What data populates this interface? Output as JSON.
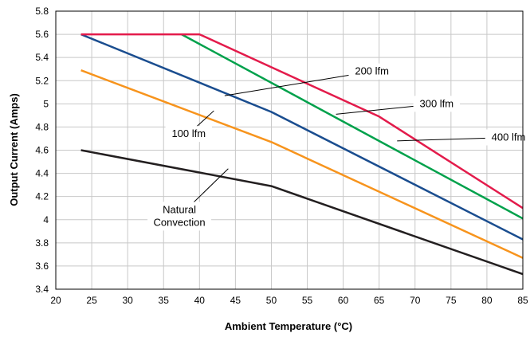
{
  "chart_data": {
    "type": "line",
    "title": "",
    "xlabel": "Ambient Temperature (°C)",
    "ylabel": "Output Current (Amps)",
    "xlim": [
      20,
      85
    ],
    "ylim": [
      3.4,
      5.8
    ],
    "xticks": [
      20,
      25,
      30,
      35,
      40,
      45,
      50,
      55,
      60,
      65,
      70,
      75,
      80,
      85
    ],
    "yticks": [
      3.4,
      3.6,
      3.8,
      4.0,
      4.2,
      4.4,
      4.6,
      4.8,
      5.0,
      5.2,
      5.4,
      5.6,
      5.8
    ],
    "xtick_labels": [
      "20",
      "25",
      "30",
      "35",
      "40",
      "45",
      "50",
      "55",
      "60",
      "65",
      "70",
      "75",
      "80",
      "85"
    ],
    "ytick_labels": [
      "3.4",
      "3.6",
      "3.8",
      "4",
      "4.2",
      "4.4",
      "4.6",
      "4.8",
      "5",
      "5.2",
      "5.4",
      "5.6",
      "5.8"
    ],
    "grid": true,
    "legend": "none",
    "series": [
      {
        "color": "#231f20",
        "points": [
          [
            23.5,
            4.6
          ],
          [
            50,
            4.29
          ],
          [
            85,
            3.53
          ]
        ]
      },
      {
        "color": "#f7941d",
        "points": [
          [
            23.5,
            5.29
          ],
          [
            50,
            4.67
          ],
          [
            85,
            3.67
          ]
        ]
      },
      {
        "color": "#1a4d8f",
        "points": [
          [
            23.5,
            5.6
          ],
          [
            50,
            4.93
          ],
          [
            85,
            3.83
          ]
        ]
      },
      {
        "color": "#00a14b",
        "points": [
          [
            37.5,
            5.6
          ],
          [
            85,
            4.01
          ]
        ]
      },
      {
        "color": "#e31b4b",
        "points": [
          [
            23.5,
            5.6
          ],
          [
            40,
            5.6
          ],
          [
            65,
            4.89
          ],
          [
            85,
            4.1
          ]
        ]
      }
    ],
    "annotations": [
      {
        "text": "Natural\nConvection",
        "point": [
          44,
          4.44
        ],
        "anchor": [
          37.2,
          4.03
        ]
      },
      {
        "text": "100 lfm",
        "point": [
          42,
          4.94
        ],
        "anchor": [
          38.5,
          4.74
        ]
      },
      {
        "text": "200 lfm",
        "point": [
          43.5,
          5.07
        ],
        "anchor": [
          64,
          5.28
        ]
      },
      {
        "text": "300 lfm",
        "point": [
          59,
          4.91
        ],
        "anchor": [
          73,
          5.0
        ]
      },
      {
        "text": "400 lfm",
        "point": [
          67.5,
          4.68
        ],
        "anchor": [
          83,
          4.71
        ]
      }
    ]
  }
}
